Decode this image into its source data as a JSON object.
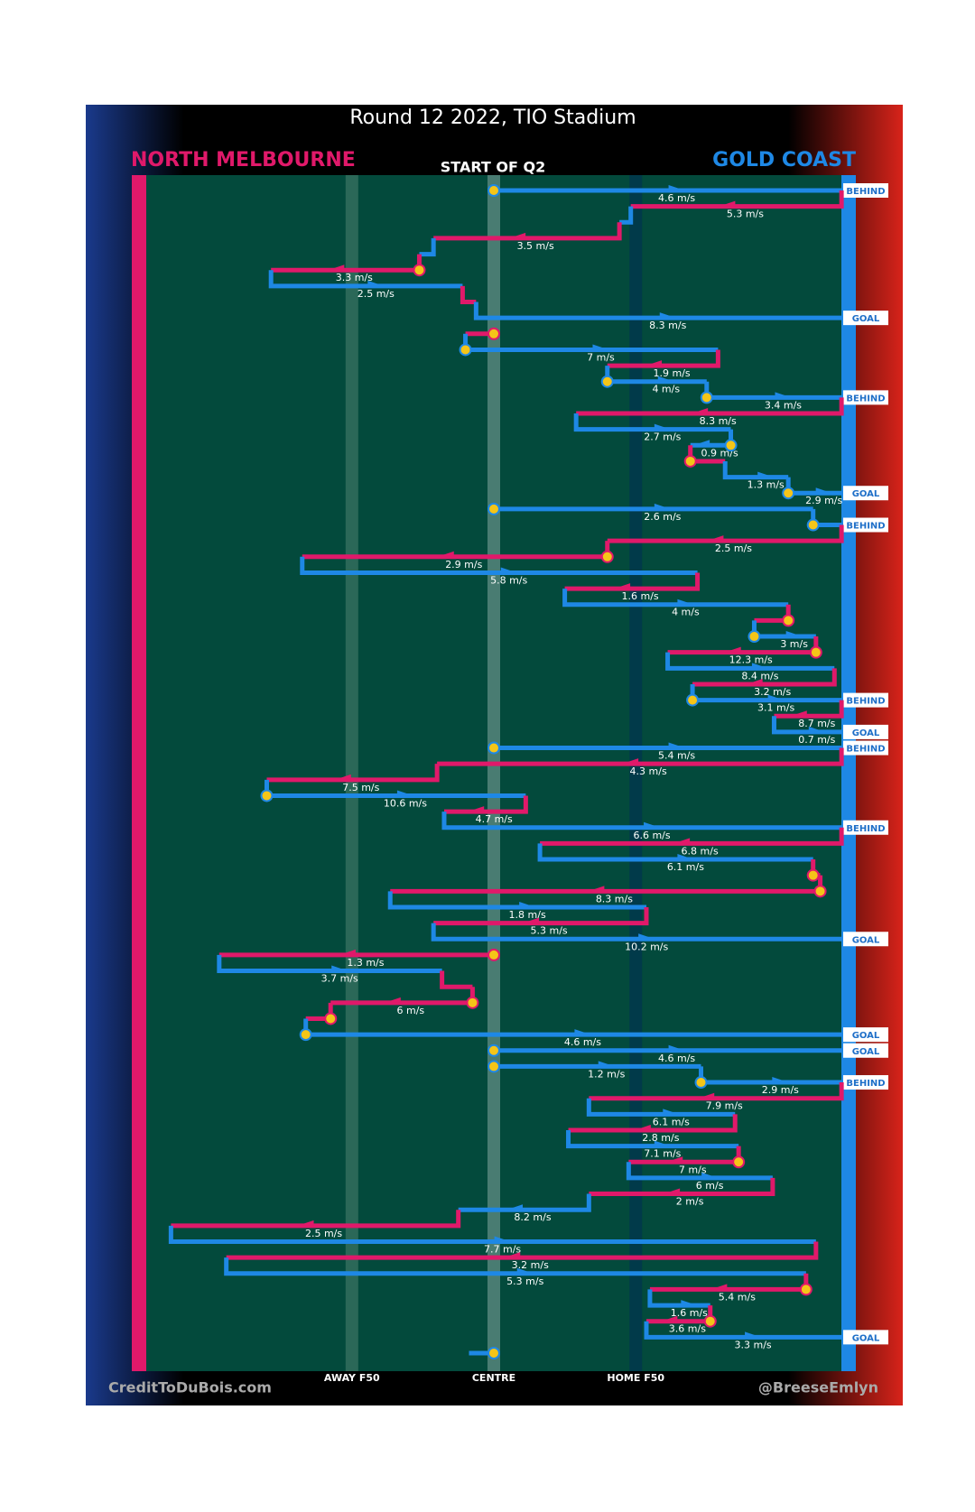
{
  "chart_data": {
    "type": "possession-flow",
    "title": "Round 12 2022, TIO Stadium",
    "subtitle": "START OF Q2",
    "teams": [
      {
        "name": "NORTH MELBOURNE",
        "color": "#e0196a"
      },
      {
        "name": "GOLD COAST",
        "color": "#1e88e5"
      }
    ],
    "xlim": [
      0,
      100
    ],
    "xticks": [
      {
        "value": 30,
        "label": "AWAY F50"
      },
      {
        "value": 50,
        "label": "CENTRE"
      },
      {
        "value": 70,
        "label": "HOME F50"
      }
    ],
    "credit_left": "CreditToDuBois.com",
    "credit_right": "@BreeseEmlyn",
    "segments": [
      {
        "team": 1,
        "start": 50,
        "end": 99,
        "label": "4.6 m/s",
        "stop": true,
        "result": "BEHIND"
      },
      {
        "team": 0,
        "start": 99,
        "end": 69.3,
        "label": "5.3 m/s"
      },
      {
        "team": 1,
        "start": 69.3,
        "end": 67.7
      },
      {
        "team": 0,
        "start": 67.7,
        "end": 41.5,
        "label": "3.5 m/s"
      },
      {
        "team": 1,
        "start": 41.5,
        "end": 39.5
      },
      {
        "team": 0,
        "start": 39.5,
        "end": 18.6,
        "label": "3.3 m/s",
        "stop": true
      },
      {
        "team": 1,
        "start": 18.6,
        "end": 45.6,
        "label": "2.5 m/s"
      },
      {
        "team": 0,
        "start": 45.6,
        "end": 47.5
      },
      {
        "team": 1,
        "start": 47.5,
        "end": 99,
        "label": "8.3 m/s",
        "result": "GOAL"
      },
      {
        "team": 0,
        "start": 50,
        "end": 46,
        "stop": true
      },
      {
        "team": 1,
        "start": 46,
        "end": 81.6,
        "label": "7 m/s",
        "stop": true
      },
      {
        "team": 0,
        "start": 81.6,
        "end": 66,
        "label": "1.9 m/s"
      },
      {
        "team": 1,
        "start": 66,
        "end": 80,
        "label": "4 m/s",
        "stop": true
      },
      {
        "team": 1,
        "start": 80,
        "end": 99,
        "label": "3.4 m/s",
        "stop": true,
        "result": "BEHIND"
      },
      {
        "team": 0,
        "start": 99,
        "end": 61.6,
        "label": "8.3 m/s"
      },
      {
        "team": 1,
        "start": 61.6,
        "end": 83.4,
        "label": "2.7 m/s"
      },
      {
        "team": 1,
        "start": 83.4,
        "end": 77.7,
        "label": "0.9 m/s",
        "stop": true
      },
      {
        "team": 0,
        "start": 77.7,
        "end": 82.6,
        "stop": true
      },
      {
        "team": 1,
        "start": 82.6,
        "end": 91.5,
        "label": "1.3 m/s"
      },
      {
        "team": 1,
        "start": 91.5,
        "end": 99,
        "label": "2.9 m/s",
        "stop": true,
        "result": "GOAL"
      },
      {
        "team": 1,
        "start": 50,
        "end": 95,
        "label": "2.6 m/s",
        "stop": true
      },
      {
        "team": 1,
        "start": 95,
        "end": 99,
        "stop": true,
        "result": "BEHIND"
      },
      {
        "team": 0,
        "start": 99,
        "end": 66,
        "label": "2.5 m/s"
      },
      {
        "team": 0,
        "start": 66,
        "end": 23,
        "label": "2.9 m/s",
        "stop": true
      },
      {
        "team": 1,
        "start": 23,
        "end": 78.7,
        "label": "5.8 m/s"
      },
      {
        "team": 0,
        "start": 78.7,
        "end": 60,
        "label": "1.6 m/s"
      },
      {
        "team": 1,
        "start": 60,
        "end": 91.5,
        "label": "4 m/s"
      },
      {
        "team": 0,
        "start": 91.5,
        "end": 86.7,
        "stop": true
      },
      {
        "team": 1,
        "start": 86.7,
        "end": 95.4,
        "label": "3 m/s",
        "stop": true
      },
      {
        "team": 0,
        "start": 95.4,
        "end": 74.5,
        "label": "12.3 m/s",
        "stop": true
      },
      {
        "team": 1,
        "start": 74.5,
        "end": 98,
        "label": "8.4 m/s"
      },
      {
        "team": 0,
        "start": 98,
        "end": 78,
        "label": "3.2 m/s"
      },
      {
        "team": 1,
        "start": 78,
        "end": 99,
        "label": "3.1 m/s",
        "stop": true,
        "result": "BEHIND"
      },
      {
        "team": 0,
        "start": 99,
        "end": 89.5,
        "label": "8.7 m/s"
      },
      {
        "team": 1,
        "start": 89.5,
        "end": 99,
        "label": "0.7 m/s",
        "result": "GOAL"
      },
      {
        "team": 1,
        "start": 50,
        "end": 99,
        "label": "5.4 m/s",
        "stop": true,
        "result": "BEHIND"
      },
      {
        "team": 0,
        "start": 99,
        "end": 42,
        "label": "4.3 m/s"
      },
      {
        "team": 0,
        "start": 42,
        "end": 18,
        "label": "7.5 m/s"
      },
      {
        "team": 1,
        "start": 18,
        "end": 54.5,
        "label": "10.6 m/s",
        "stop": true
      },
      {
        "team": 0,
        "start": 54.5,
        "end": 43,
        "label": "4.7 m/s"
      },
      {
        "team": 1,
        "start": 43,
        "end": 99,
        "label": "6.6 m/s",
        "result": "BEHIND"
      },
      {
        "team": 0,
        "start": 99,
        "end": 56.5,
        "label": "6.8 m/s"
      },
      {
        "team": 1,
        "start": 56.5,
        "end": 95,
        "label": "6.1 m/s"
      },
      {
        "team": 0,
        "start": 95,
        "end": 96,
        "stop": true
      },
      {
        "team": 0,
        "start": 96,
        "end": 35.4,
        "label": "8.3 m/s",
        "stop": true
      },
      {
        "team": 1,
        "start": 35.4,
        "end": 71.5,
        "label": "1.8 m/s"
      },
      {
        "team": 0,
        "start": 71.5,
        "end": 41.5,
        "label": "5.3 m/s"
      },
      {
        "team": 1,
        "start": 41.5,
        "end": 99,
        "label": "10.2 m/s",
        "result": "GOAL"
      },
      {
        "team": 0,
        "start": 50,
        "end": 11.3,
        "label": "1.3 m/s",
        "stop": true
      },
      {
        "team": 1,
        "start": 11.3,
        "end": 42.7,
        "label": "3.7 m/s"
      },
      {
        "team": 0,
        "start": 42.7,
        "end": 47
      },
      {
        "team": 0,
        "start": 47,
        "end": 27,
        "label": "6 m/s",
        "stop": true
      },
      {
        "team": 0,
        "start": 27,
        "end": 23.5,
        "stop": true
      },
      {
        "team": 1,
        "start": 23.5,
        "end": 99,
        "label": "4.6 m/s",
        "stop": true,
        "result": "GOAL"
      },
      {
        "team": 1,
        "start": 50,
        "end": 99,
        "label": "4.6 m/s",
        "stop": true,
        "result": "GOAL"
      },
      {
        "team": 1,
        "start": 50,
        "end": 79.2,
        "label": "1.2 m/s",
        "stop": true
      },
      {
        "team": 1,
        "start": 79.2,
        "end": 99,
        "label": "2.9 m/s",
        "stop": true,
        "result": "BEHIND"
      },
      {
        "team": 0,
        "start": 99,
        "end": 63.4,
        "label": "7.9 m/s"
      },
      {
        "team": 1,
        "start": 63.4,
        "end": 84,
        "label": "6.1 m/s"
      },
      {
        "team": 0,
        "start": 84,
        "end": 60.5,
        "label": "2.8 m/s"
      },
      {
        "team": 1,
        "start": 60.5,
        "end": 84.5,
        "label": "7.1 m/s"
      },
      {
        "team": 0,
        "start": 84.5,
        "end": 69,
        "label": "7 m/s",
        "stop": true
      },
      {
        "team": 1,
        "start": 69,
        "end": 89.3,
        "label": "6 m/s"
      },
      {
        "team": 0,
        "start": 89.3,
        "end": 63.4,
        "label": "2 m/s"
      },
      {
        "team": 1,
        "start": 63.4,
        "end": 45,
        "label": "8.2 m/s"
      },
      {
        "team": 0,
        "start": 45,
        "end": 4.5,
        "label": "2.5 m/s"
      },
      {
        "team": 1,
        "start": 4.5,
        "end": 95.4,
        "label": "7.7 m/s"
      },
      {
        "team": 0,
        "start": 95.4,
        "end": 12.3,
        "label": "3.2 m/s"
      },
      {
        "team": 1,
        "start": 12.3,
        "end": 94,
        "label": "5.3 m/s"
      },
      {
        "team": 0,
        "start": 94,
        "end": 72,
        "label": "5.4 m/s",
        "stop": true
      },
      {
        "team": 1,
        "start": 72,
        "end": 80.5,
        "label": "1.6 m/s"
      },
      {
        "team": 0,
        "start": 80.5,
        "end": 71.5,
        "label": "3.6 m/s",
        "stop": true
      },
      {
        "team": 1,
        "start": 71.5,
        "end": 99,
        "label": "3.3 m/s",
        "result": "GOAL"
      },
      {
        "team": 1,
        "start": 50,
        "end": 46.5,
        "stop": true
      }
    ]
  }
}
